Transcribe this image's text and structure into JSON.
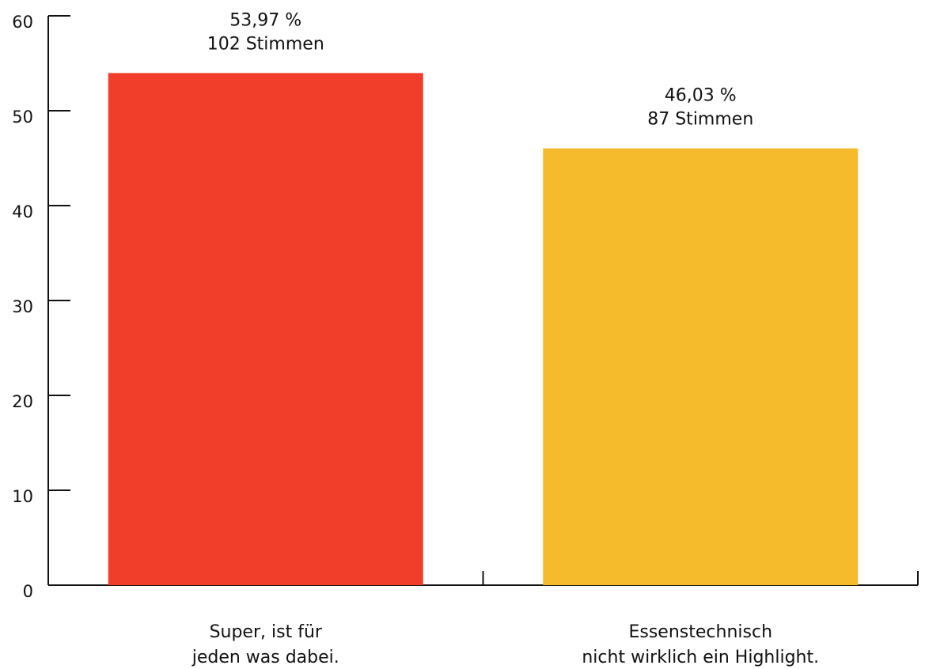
{
  "chart_data": {
    "type": "bar",
    "categories": [
      [
        "Super, ist für",
        "jeden was dabei."
      ],
      [
        "Essenstechnisch",
        "nicht wirklich ein Highlight."
      ]
    ],
    "values": [
      53.97,
      46.03
    ],
    "value_labels": [
      [
        "53,97 %",
        "102 Stimmen"
      ],
      [
        "46,03 %",
        "87 Stimmen"
      ]
    ],
    "colors": [
      "#F03E2A",
      "#F5BB2C"
    ],
    "ylim": [
      0,
      60
    ],
    "yticks": [
      0,
      10,
      20,
      30,
      40,
      50,
      60
    ],
    "title": "",
    "xlabel": "",
    "ylabel": "",
    "grid": false,
    "legend": "none"
  }
}
